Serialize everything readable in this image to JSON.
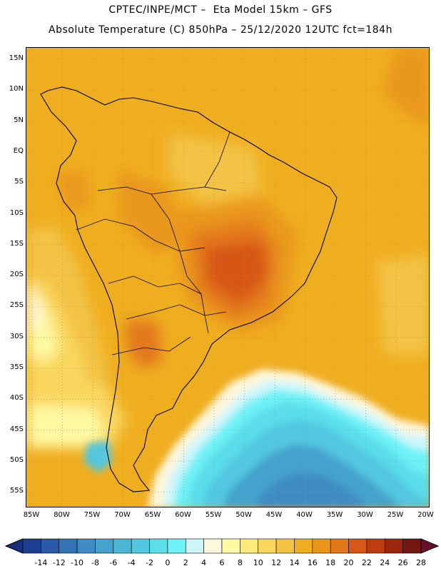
{
  "header": {
    "line1": "CPTEC/INPE/MCT –  Eta Model 15km – GFS",
    "line2": "Absolute Temperature (C) 850hPa – 25/12/2020 12UTC fct=184h"
  },
  "map": {
    "lat_labels": [
      "15N",
      "10N",
      "5N",
      "EQ",
      "5S",
      "10S",
      "15S",
      "20S",
      "25S",
      "30S",
      "35S",
      "40S",
      "45S",
      "50S",
      "55S"
    ],
    "lon_labels": [
      "85W",
      "80W",
      "75W",
      "70W",
      "65W",
      "60W",
      "55W",
      "50W",
      "45W",
      "40W",
      "35W",
      "30W",
      "25W",
      "20W"
    ]
  },
  "colorbar": {
    "labels": [
      "-14",
      "-12",
      "-10",
      "-8",
      "-6",
      "-4",
      "-2",
      "0",
      "2",
      "4",
      "6",
      "8",
      "10",
      "12",
      "14",
      "16",
      "18",
      "20",
      "22",
      "24",
      "26",
      "28"
    ],
    "colors": [
      "#1c3f8f",
      "#2a5aa6",
      "#3574b4",
      "#3f8bc4",
      "#45a2cc",
      "#4cb6d6",
      "#52c8e0",
      "#5adeea",
      "#6ef2f6",
      "#cdf6fb",
      "#fdf7dc",
      "#fff9a4",
      "#fdea78",
      "#f9d75e",
      "#f3c344",
      "#efae20",
      "#e9961a",
      "#e3781a",
      "#d65716",
      "#bd3c10",
      "#9c260c",
      "#731810"
    ],
    "under_color": "#1a2f7a",
    "over_color": "#6a0f2e"
  }
}
